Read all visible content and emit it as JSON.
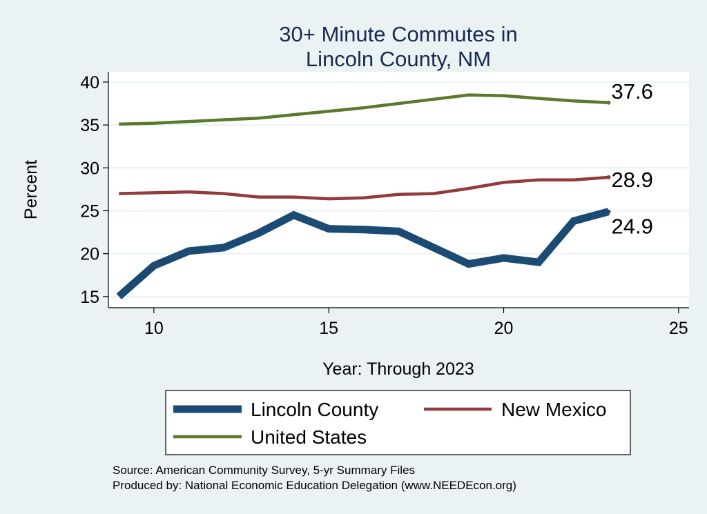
{
  "chart_data": {
    "type": "line",
    "title_lines": [
      "30+ Minute Commutes in",
      "Lincoln County, NM"
    ],
    "xlabel": "Year: Through 2023",
    "ylabel": "Percent",
    "xlim": [
      8.7,
      25.3
    ],
    "ylim": [
      13.7,
      41.2
    ],
    "xticks": [
      10,
      15,
      20,
      25
    ],
    "yticks": [
      15,
      20,
      25,
      30,
      35,
      40
    ],
    "grid": true,
    "legend_position": "bottom",
    "x": [
      9,
      10,
      11,
      12,
      13,
      14,
      15,
      16,
      17,
      18,
      19,
      20,
      21,
      22,
      23
    ],
    "series": [
      {
        "name": "Lincoln County",
        "color": "#1b4a73",
        "width": 11,
        "values": [
          15.0,
          18.6,
          20.3,
          20.7,
          22.4,
          24.5,
          22.9,
          22.8,
          22.6,
          20.7,
          18.8,
          19.5,
          19.0,
          23.8,
          24.9
        ],
        "end_label": "24.9"
      },
      {
        "name": "New Mexico",
        "color": "#923a3c",
        "width": 4.5,
        "values": [
          27.0,
          27.1,
          27.2,
          27.0,
          26.6,
          26.6,
          26.4,
          26.5,
          26.9,
          27.0,
          27.6,
          28.3,
          28.6,
          28.6,
          28.9
        ],
        "end_label": "28.9"
      },
      {
        "name": "United States",
        "color": "#597a2c",
        "width": 4.5,
        "values": [
          35.1,
          35.2,
          35.4,
          35.6,
          35.8,
          36.2,
          36.6,
          37.0,
          37.5,
          38.0,
          38.5,
          38.4,
          38.1,
          37.8,
          37.6
        ],
        "end_label": "37.6"
      }
    ]
  },
  "notes": {
    "source": "Source: American Community Survey, 5-yr Summary Files",
    "produced": "Produced by: National Economic Education Delegation (www.NEEDEcon.org)"
  }
}
